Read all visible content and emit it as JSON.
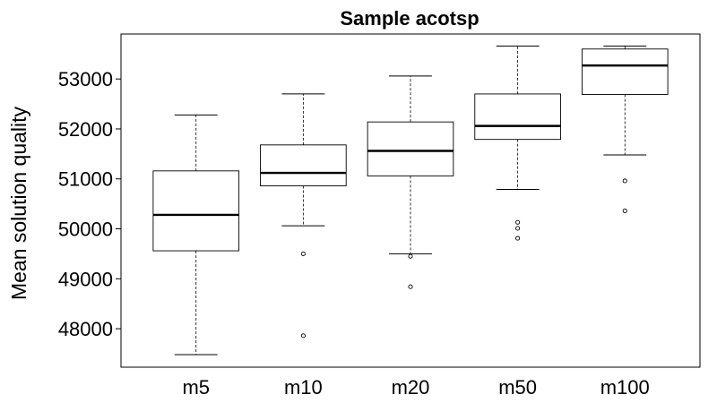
{
  "chart_data": {
    "type": "box",
    "title": "Sample acotsp",
    "xlabel": "",
    "ylabel": "Mean solution quality",
    "categories": [
      "m5",
      "m10",
      "m20",
      "m50",
      "m100"
    ],
    "yticks": [
      48000,
      49000,
      50000,
      51000,
      52000,
      53000
    ],
    "ylim": [
      47230,
      53900
    ],
    "grid": false,
    "legend": "none",
    "boxes": [
      {
        "name": "m5",
        "whisker_low": 47480,
        "q1": 49560,
        "median": 50280,
        "q3": 51160,
        "whisker_high": 52280,
        "outliers": []
      },
      {
        "name": "m10",
        "whisker_low": 50060,
        "q1": 50860,
        "median": 51120,
        "q3": 51680,
        "whisker_high": 52700,
        "outliers": [
          49500,
          47860
        ]
      },
      {
        "name": "m20",
        "whisker_low": 49500,
        "q1": 51060,
        "median": 51560,
        "q3": 52140,
        "whisker_high": 53060,
        "outliers": [
          49450,
          48840
        ]
      },
      {
        "name": "m50",
        "whisker_low": 50790,
        "q1": 51790,
        "median": 52060,
        "q3": 52700,
        "whisker_high": 53660,
        "outliers": [
          50130,
          50010,
          49810
        ]
      },
      {
        "name": "m100",
        "whisker_low": 51480,
        "q1": 52690,
        "median": 53270,
        "q3": 53600,
        "whisker_high": 53660,
        "outliers": [
          50960,
          50360
        ]
      }
    ]
  }
}
